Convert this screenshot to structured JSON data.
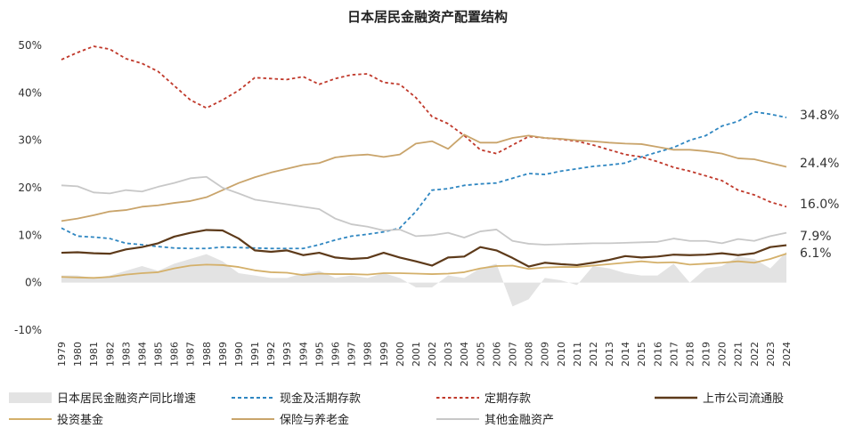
{
  "chart_data": {
    "type": "line",
    "title": "日本居民金融资产配置结构",
    "years": [
      "1979",
      "1980",
      "1981",
      "1982",
      "1983",
      "1984",
      "1985",
      "1986",
      "1987",
      "1988",
      "1989",
      "1990",
      "1991",
      "1992",
      "1993",
      "1994",
      "1995",
      "1996",
      "1997",
      "1998",
      "1999",
      "2000",
      "2001",
      "2002",
      "2003",
      "2004",
      "2005",
      "2006",
      "2007",
      "2008",
      "2009",
      "2010",
      "2011",
      "2012",
      "2013",
      "2014",
      "2015",
      "2016",
      "2017",
      "2018",
      "2019",
      "2020",
      "2021",
      "2022",
      "2023",
      "2024"
    ],
    "y_ticks": [
      "-10%",
      "0%",
      "10%",
      "20%",
      "30%",
      "40%",
      "50%"
    ],
    "ylim": [
      -10,
      50
    ],
    "series": [
      {
        "name": "日本居民金融资产同比增速",
        "kind": "area",
        "color": "#e3e3e3",
        "values": [
          1.5,
          1.5,
          1.0,
          1.5,
          2.5,
          3.5,
          2.5,
          4.0,
          5.0,
          6.0,
          4.5,
          2.0,
          1.5,
          1.0,
          1.0,
          2.0,
          2.5,
          1.0,
          1.5,
          1.0,
          2.0,
          1.0,
          -1.0,
          -1.0,
          1.5,
          1.0,
          3.0,
          4.0,
          -5.0,
          -3.5,
          1.0,
          0.5,
          -0.5,
          3.5,
          3.0,
          2.0,
          1.5,
          1.5,
          4.0,
          0.0,
          3.0,
          3.5,
          5.5,
          5.0,
          3.0,
          6.5
        ]
      },
      {
        "name": "现金及活期存款",
        "kind": "line",
        "dash": "4,3",
        "color": "#2e86c1",
        "values": [
          11.5,
          9.8,
          9.6,
          9.3,
          8.3,
          8.0,
          7.6,
          7.3,
          7.2,
          7.2,
          7.5,
          7.4,
          7.3,
          7.2,
          7.2,
          7.2,
          8.0,
          9.0,
          9.8,
          10.2,
          10.7,
          11.5,
          15.0,
          19.5,
          19.8,
          20.5,
          20.8,
          21.0,
          22.0,
          23.0,
          22.8,
          23.5,
          24.0,
          24.5,
          24.8,
          25.2,
          26.5,
          27.5,
          28.5,
          30.0,
          31.0,
          33.0,
          34.0,
          36.0,
          35.5,
          34.8
        ]
      },
      {
        "name": "定期存款",
        "kind": "line",
        "dash": "3.5,3",
        "color": "#c0392b",
        "values": [
          47.0,
          48.5,
          49.8,
          49.2,
          47.2,
          46.2,
          44.5,
          41.5,
          38.5,
          36.8,
          38.5,
          40.5,
          43.2,
          43.0,
          42.8,
          43.4,
          41.8,
          43.0,
          43.8,
          44.0,
          42.2,
          41.8,
          39.0,
          35.0,
          33.5,
          31.0,
          28.0,
          27.2,
          29.0,
          30.8,
          30.5,
          30.2,
          29.8,
          29.0,
          28.0,
          27.0,
          26.5,
          25.5,
          24.3,
          23.5,
          22.5,
          21.5,
          19.5,
          18.5,
          17.0,
          16.0
        ]
      },
      {
        "name": "上市公司流通股",
        "kind": "line",
        "dash": "",
        "color": "#5d3a1a",
        "values": [
          6.3,
          6.4,
          6.2,
          6.1,
          7.0,
          7.5,
          8.3,
          9.7,
          10.5,
          11.1,
          11.0,
          9.3,
          6.8,
          6.5,
          6.8,
          5.8,
          6.3,
          5.3,
          5.0,
          5.2,
          6.3,
          5.3,
          4.5,
          3.6,
          5.3,
          5.5,
          7.5,
          6.8,
          5.2,
          3.4,
          4.2,
          3.9,
          3.7,
          4.2,
          4.8,
          5.6,
          5.3,
          5.5,
          5.9,
          5.8,
          5.9,
          6.2,
          5.8,
          6.2,
          7.5,
          7.9
        ]
      },
      {
        "name": "投资基金",
        "kind": "line",
        "dash": "",
        "color": "#d4b06a",
        "values": [
          1.2,
          1.1,
          1.0,
          1.2,
          1.7,
          2.0,
          2.2,
          3.0,
          3.6,
          3.8,
          3.7,
          3.3,
          2.6,
          2.2,
          2.1,
          1.6,
          1.9,
          1.8,
          1.8,
          1.7,
          2.0,
          2.0,
          1.9,
          1.8,
          1.9,
          2.2,
          3.0,
          3.5,
          3.6,
          2.9,
          3.2,
          3.3,
          3.3,
          3.6,
          3.9,
          4.2,
          4.5,
          4.2,
          4.3,
          3.8,
          4.0,
          4.2,
          4.5,
          4.2,
          5.0,
          6.1
        ]
      },
      {
        "name": "保险与养老金",
        "kind": "line",
        "dash": "",
        "color": "#c9a46b",
        "values": [
          13.0,
          13.5,
          14.2,
          15.0,
          15.3,
          16.0,
          16.3,
          16.8,
          17.2,
          18.0,
          19.5,
          21.0,
          22.2,
          23.2,
          24.0,
          24.8,
          25.2,
          26.4,
          26.8,
          27.0,
          26.5,
          27.0,
          29.3,
          29.8,
          28.2,
          31.2,
          29.5,
          29.5,
          30.5,
          31.0,
          30.5,
          30.3,
          30.0,
          29.8,
          29.5,
          29.3,
          29.2,
          28.6,
          28.0,
          28.0,
          27.7,
          27.2,
          26.2,
          26.0,
          25.2,
          24.4
        ]
      },
      {
        "name": "其他金融资产",
        "kind": "line",
        "dash": "",
        "color": "#c8c8c8",
        "values": [
          20.5,
          20.3,
          19.0,
          18.8,
          19.5,
          19.2,
          20.2,
          21.0,
          22.0,
          22.3,
          20.0,
          18.8,
          17.5,
          17.0,
          16.5,
          16.0,
          15.5,
          13.5,
          12.3,
          11.8,
          11.0,
          11.2,
          9.8,
          10.0,
          10.5,
          9.5,
          10.8,
          11.2,
          8.8,
          8.2,
          8.0,
          8.1,
          8.2,
          8.3,
          8.3,
          8.4,
          8.5,
          8.6,
          9.3,
          8.8,
          8.8,
          8.3,
          9.2,
          8.8,
          9.8,
          10.5
        ]
      }
    ],
    "end_labels": [
      {
        "text": "34.8%",
        "value": 34.8
      },
      {
        "text": "24.4%",
        "value": 24.4
      },
      {
        "text": "16.0%",
        "value": 16.0
      },
      {
        "text": "7.9%",
        "value": 7.9
      },
      {
        "text": "6.1%",
        "value": 6.1
      }
    ],
    "legend_rows": [
      [
        "日本居民金融资产同比增速",
        "现金及活期存款",
        "定期存款",
        "上市公司流通股"
      ],
      [
        "投资基金",
        "保险与养老金",
        "其他金融资产"
      ]
    ],
    "legend_placement": "bottom",
    "grid": false
  }
}
